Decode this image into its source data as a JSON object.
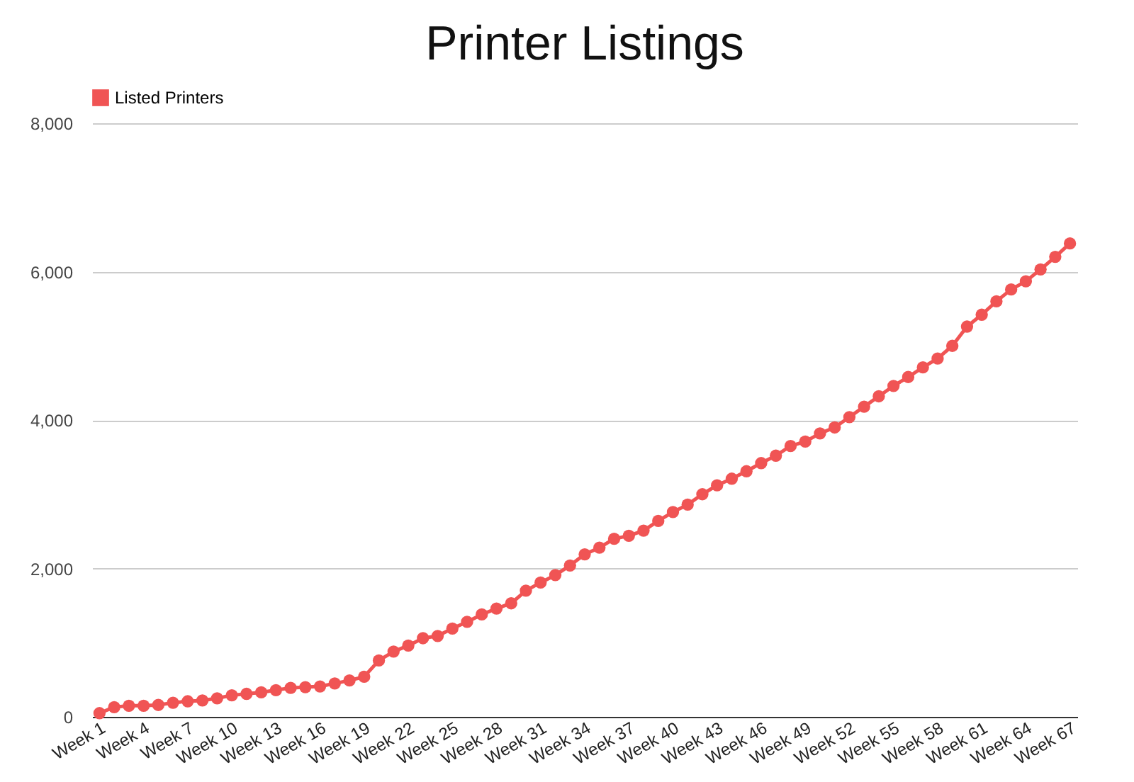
{
  "chart_data": {
    "type": "line",
    "title": "Printer Listings",
    "categories": [
      "Week 1",
      null,
      null,
      "Week 4",
      null,
      null,
      "Week 7",
      null,
      null,
      "Week 10",
      null,
      null,
      "Week 13",
      null,
      null,
      "Week 16",
      null,
      null,
      "Week 19",
      null,
      null,
      "Week 22",
      null,
      null,
      "Week 25",
      null,
      null,
      "Week 28",
      null,
      null,
      "Week 31",
      null,
      null,
      "Week 34",
      null,
      null,
      "Week 37",
      null,
      null,
      "Week 40",
      null,
      null,
      "Week 43",
      null,
      null,
      "Week 46",
      null,
      null,
      "Week 49",
      null,
      null,
      "Week 52",
      null,
      null,
      "Week 55",
      null,
      null,
      "Week 58",
      null,
      null,
      "Week 61",
      null,
      null,
      "Week 64",
      null,
      null,
      "Week 67"
    ],
    "series": [
      {
        "name": "Listed Printers",
        "color": "#f05454",
        "values": [
          50,
          130,
          150,
          150,
          160,
          190,
          210,
          220,
          250,
          290,
          310,
          330,
          360,
          390,
          400,
          410,
          450,
          490,
          540,
          760,
          880,
          960,
          1060,
          1090,
          1190,
          1280,
          1380,
          1460,
          1530,
          1700,
          1810,
          1910,
          2040,
          2190,
          2280,
          2400,
          2440,
          2510,
          2640,
          2760,
          2860,
          3000,
          3120,
          3210,
          3310,
          3420,
          3520,
          3650,
          3710,
          3820,
          3900,
          4040,
          4180,
          4320,
          4460,
          4580,
          4710,
          4830,
          5000,
          5260,
          5420,
          5600,
          5760,
          5870,
          6030,
          6200,
          6380
        ]
      }
    ],
    "ylim": [
      0,
      8000
    ],
    "yticks": [
      0,
      {
        "value": 2000,
        "label": "2,000"
      },
      {
        "value": 4000,
        "label": "4,000"
      },
      {
        "value": 6000,
        "label": "6,000"
      },
      {
        "value": 8000,
        "label": "8,000"
      }
    ],
    "grid": "y",
    "legend": "top left",
    "marker": "circle",
    "line_style": "solid"
  }
}
